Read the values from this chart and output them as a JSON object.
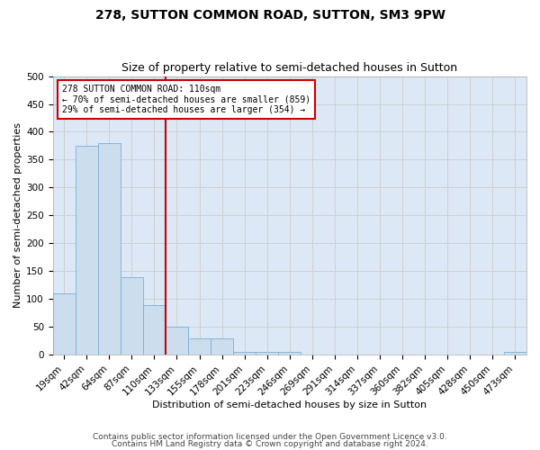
{
  "title1": "278, SUTTON COMMON ROAD, SUTTON, SM3 9PW",
  "title2": "Size of property relative to semi-detached houses in Sutton",
  "xlabel": "Distribution of semi-detached houses by size in Sutton",
  "ylabel": "Number of semi-detached properties",
  "bar_labels": [
    "19sqm",
    "42sqm",
    "64sqm",
    "87sqm",
    "110sqm",
    "133sqm",
    "155sqm",
    "178sqm",
    "201sqm",
    "223sqm",
    "246sqm",
    "269sqm",
    "291sqm",
    "314sqm",
    "337sqm",
    "360sqm",
    "382sqm",
    "405sqm",
    "428sqm",
    "450sqm",
    "473sqm"
  ],
  "bar_values": [
    110,
    375,
    380,
    140,
    90,
    50,
    30,
    30,
    5,
    5,
    5,
    0,
    0,
    0,
    0,
    0,
    0,
    0,
    0,
    0,
    5
  ],
  "bar_color": "#ccdded",
  "bar_edge_color": "#7bafd4",
  "red_line_index": 4,
  "red_line_color": "#cc0000",
  "annotation_line1": "278 SUTTON COMMON ROAD: 110sqm",
  "annotation_line2": "← 70% of semi-detached houses are smaller (859)",
  "annotation_line3": "29% of semi-detached houses are larger (354) →",
  "annotation_box_color": "#cc0000",
  "annotation_box_fill": "#ffffff",
  "ylim": [
    0,
    500
  ],
  "yticks": [
    0,
    50,
    100,
    150,
    200,
    250,
    300,
    350,
    400,
    450,
    500
  ],
  "grid_color": "#cccccc",
  "background_color": "#dce8f5",
  "footer_line1": "Contains HM Land Registry data © Crown copyright and database right 2024.",
  "footer_line2": "Contains public sector information licensed under the Open Government Licence v3.0.",
  "title_fontsize": 10,
  "subtitle_fontsize": 9,
  "axis_label_fontsize": 8,
  "tick_fontsize": 7.5,
  "footer_fontsize": 6.5
}
